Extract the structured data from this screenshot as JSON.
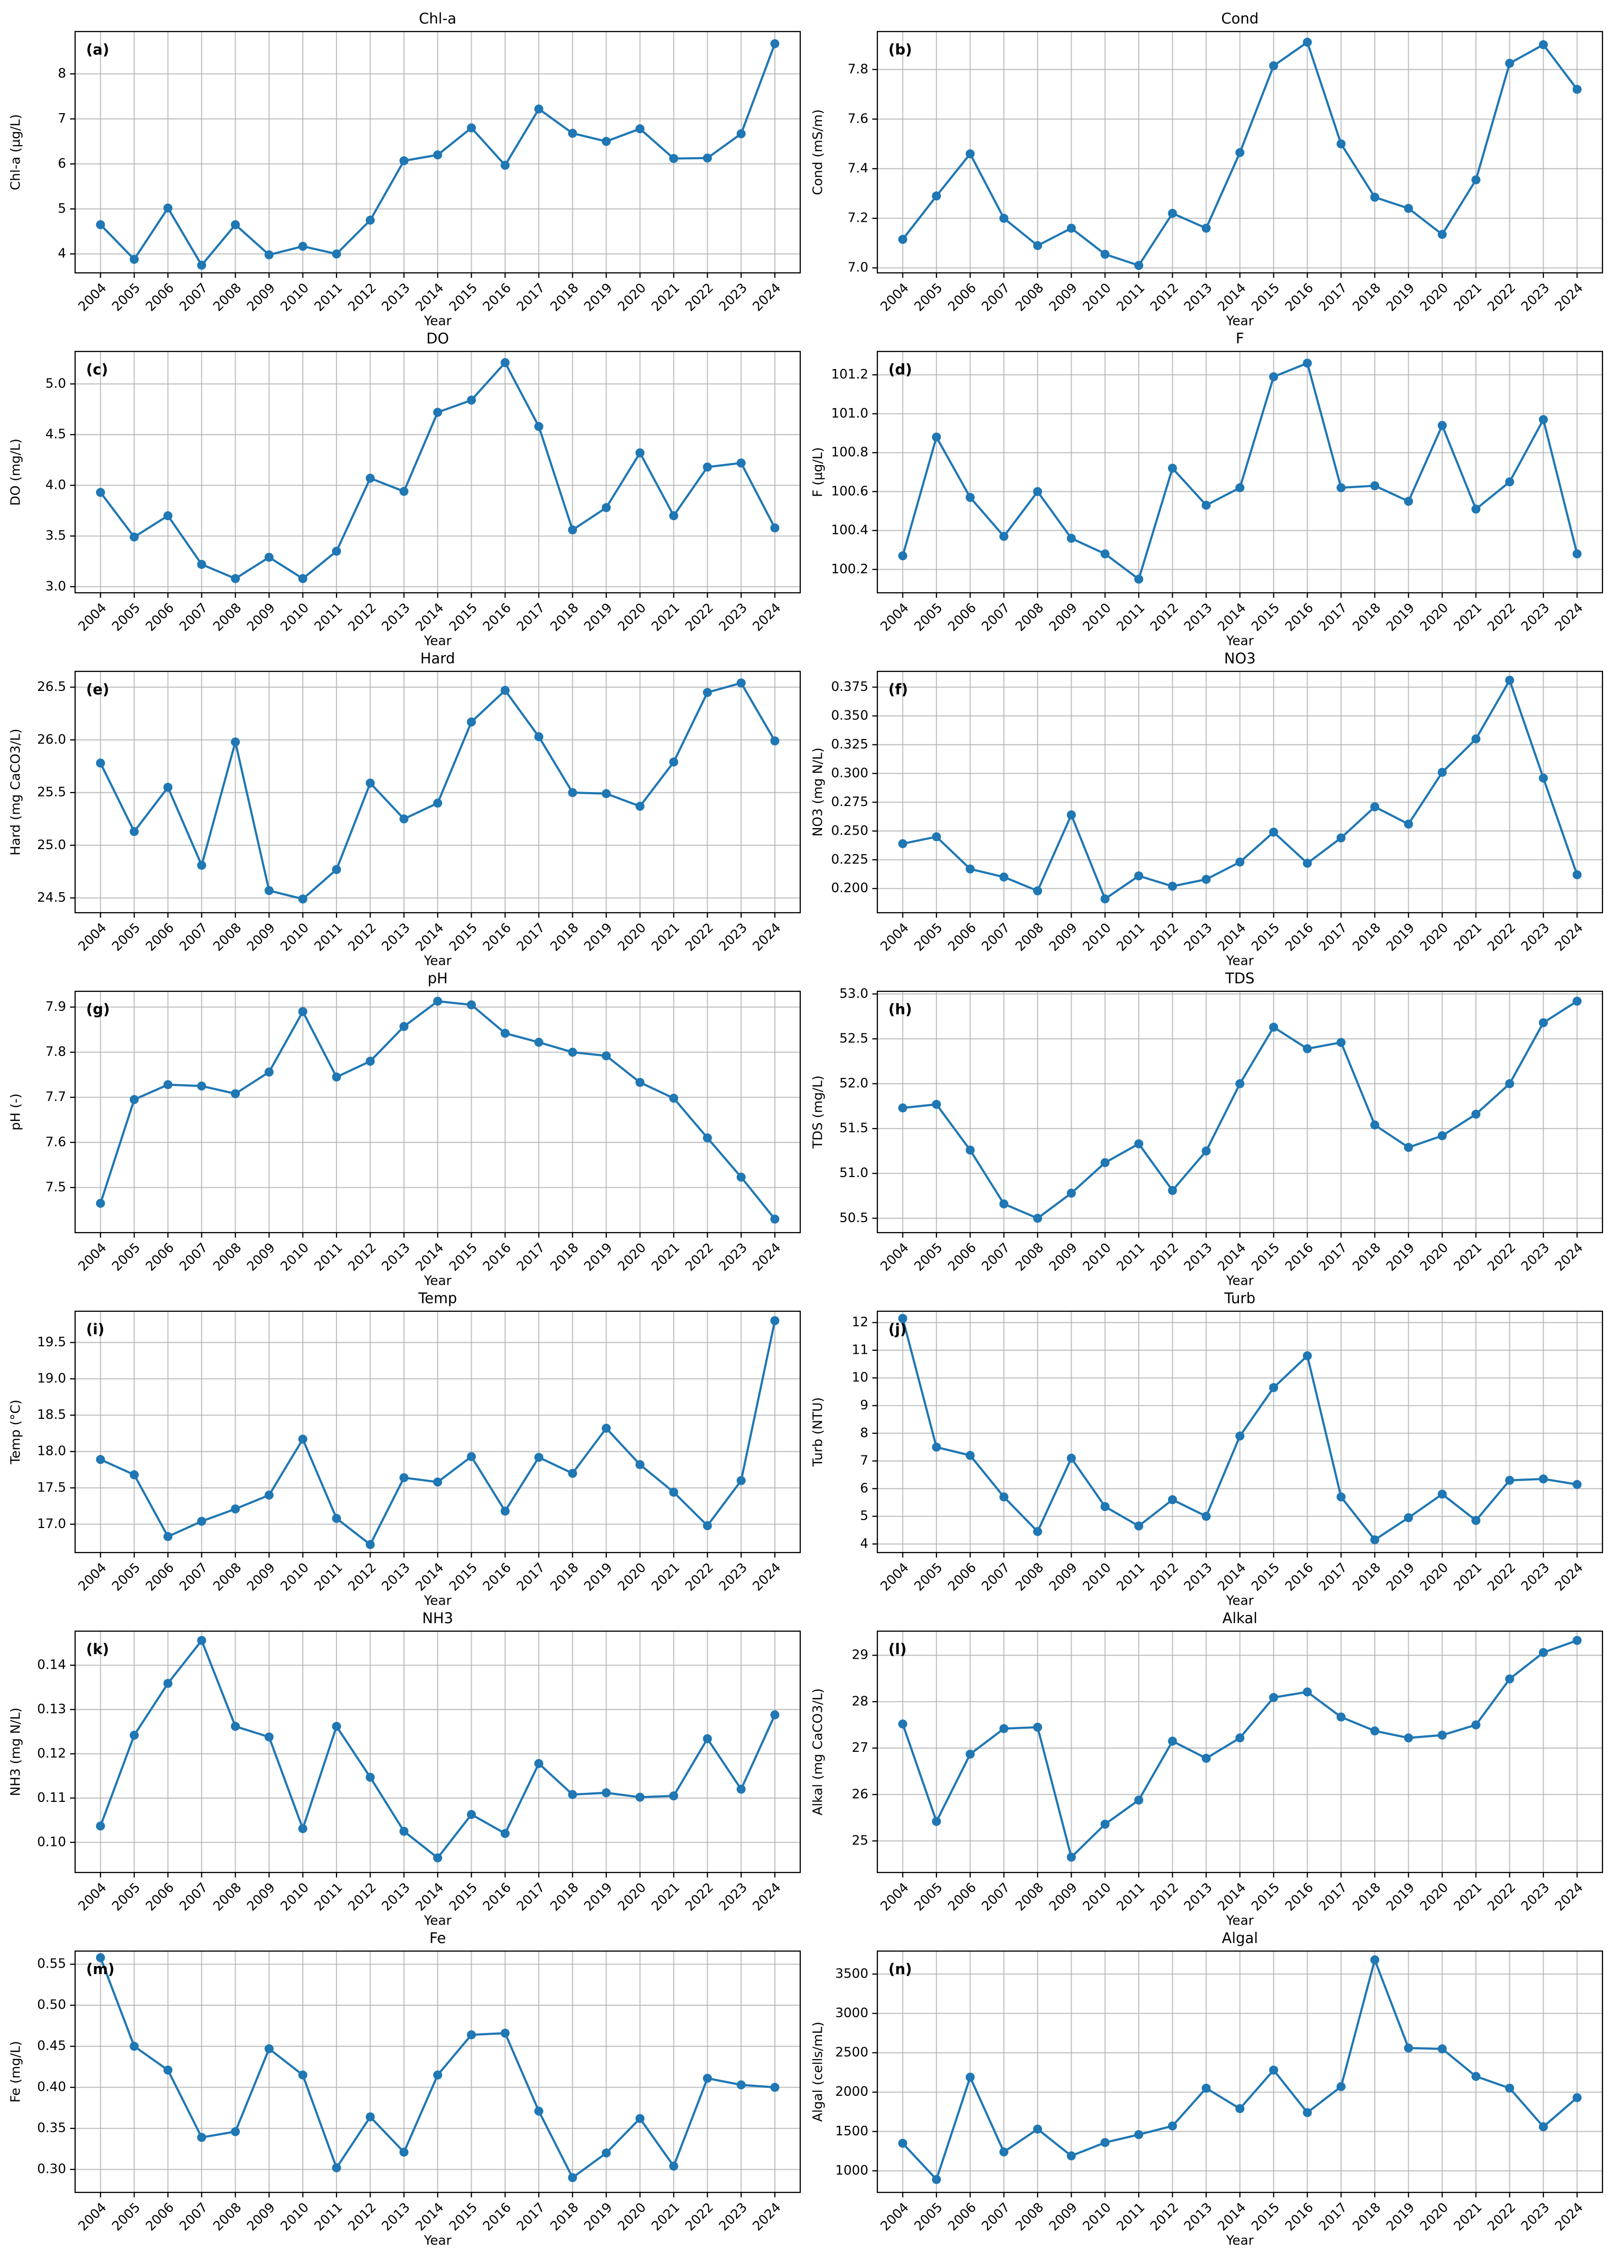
{
  "chart_data": [
    {
      "type": "line",
      "title": "Chl-a",
      "panel": "(a)",
      "xlabel": "Year",
      "ylabel": "Chl-a (µg/L)",
      "color": "#1f77b4",
      "grid": true,
      "categories": [
        "2004",
        "2005",
        "2006",
        "2007",
        "2008",
        "2009",
        "2010",
        "2011",
        "2012",
        "2013",
        "2014",
        "2015",
        "2016",
        "2017",
        "2018",
        "2019",
        "2020",
        "2021",
        "2022",
        "2023",
        "2024"
      ],
      "values": [
        4.65,
        3.88,
        5.02,
        3.75,
        4.65,
        3.98,
        4.17,
        4.0,
        4.75,
        6.07,
        6.2,
        6.8,
        5.97,
        7.22,
        6.68,
        6.5,
        6.78,
        6.12,
        6.13,
        6.67,
        8.67
      ],
      "ylim": [
        3.58,
        8.94
      ],
      "yticks": [
        4,
        5,
        6,
        7,
        8
      ]
    },
    {
      "type": "line",
      "title": "Cond",
      "panel": "(b)",
      "xlabel": "Year",
      "ylabel": "Cond (mS/m)",
      "color": "#1f77b4",
      "grid": true,
      "categories": [
        "2004",
        "2005",
        "2006",
        "2007",
        "2008",
        "2009",
        "2010",
        "2011",
        "2012",
        "2013",
        "2014",
        "2015",
        "2016",
        "2017",
        "2018",
        "2019",
        "2020",
        "2021",
        "2022",
        "2023",
        "2024"
      ],
      "values": [
        7.115,
        7.29,
        7.46,
        7.2,
        7.09,
        7.16,
        7.055,
        7.01,
        7.22,
        7.16,
        7.465,
        7.815,
        7.91,
        7.5,
        7.285,
        7.24,
        7.135,
        7.355,
        7.825,
        7.9,
        7.72
      ],
      "ylim": [
        6.98,
        7.953
      ],
      "yticks": [
        {
          "value": 7,
          "label": "7.0"
        },
        7.2,
        7.4,
        7.6,
        7.8
      ]
    },
    {
      "type": "line",
      "title": "DO",
      "panel": "(c)",
      "xlabel": "Year",
      "ylabel": "DO (mg/L)",
      "color": "#1f77b4",
      "grid": true,
      "categories": [
        "2004",
        "2005",
        "2006",
        "2007",
        "2008",
        "2009",
        "2010",
        "2011",
        "2012",
        "2013",
        "2014",
        "2015",
        "2016",
        "2017",
        "2018",
        "2019",
        "2020",
        "2021",
        "2022",
        "2023",
        "2024"
      ],
      "values": [
        3.93,
        3.49,
        3.7,
        3.22,
        3.08,
        3.29,
        3.08,
        3.35,
        4.07,
        3.94,
        4.72,
        4.84,
        5.21,
        4.58,
        3.56,
        3.78,
        4.32,
        3.7,
        4.18,
        4.22,
        3.58
      ],
      "ylim": [
        2.94,
        5.32
      ],
      "yticks": [
        {
          "value": 3,
          "label": "3.0"
        },
        3.5,
        {
          "value": 4,
          "label": "4.0"
        },
        4.5,
        {
          "value": 5,
          "label": "5.0"
        }
      ]
    },
    {
      "type": "line",
      "title": "F",
      "panel": "(d)",
      "xlabel": "Year",
      "ylabel": "F (µg/L)",
      "color": "#1f77b4",
      "grid": true,
      "categories": [
        "2004",
        "2005",
        "2006",
        "2007",
        "2008",
        "2009",
        "2010",
        "2011",
        "2012",
        "2013",
        "2014",
        "2015",
        "2016",
        "2017",
        "2018",
        "2019",
        "2020",
        "2021",
        "2022",
        "2023",
        "2024"
      ],
      "values": [
        100.27,
        100.88,
        100.57,
        100.37,
        100.6,
        100.36,
        100.28,
        100.15,
        100.72,
        100.53,
        100.62,
        101.19,
        101.26,
        100.62,
        100.63,
        100.55,
        100.94,
        100.51,
        100.65,
        100.97,
        100.28
      ],
      "ylim": [
        100.08,
        101.32
      ],
      "yticks": [
        100.2,
        100.4,
        100.6,
        100.8,
        {
          "value": 101,
          "label": "101.0"
        },
        101.2
      ]
    },
    {
      "type": "line",
      "title": "Hard",
      "panel": "(e)",
      "xlabel": "Year",
      "ylabel": "Hard (mg CaCO3/L)",
      "color": "#1f77b4",
      "grid": true,
      "categories": [
        "2004",
        "2005",
        "2006",
        "2007",
        "2008",
        "2009",
        "2010",
        "2011",
        "2012",
        "2013",
        "2014",
        "2015",
        "2016",
        "2017",
        "2018",
        "2019",
        "2020",
        "2021",
        "2022",
        "2023",
        "2024"
      ],
      "values": [
        25.78,
        25.13,
        25.55,
        24.81,
        25.98,
        24.57,
        24.49,
        24.77,
        25.59,
        25.25,
        25.4,
        26.17,
        26.47,
        26.03,
        25.5,
        25.49,
        25.37,
        25.79,
        26.45,
        26.54,
        25.99
      ],
      "ylim": [
        24.36,
        26.65
      ],
      "yticks": [
        24.5,
        {
          "value": 25,
          "label": "25.0"
        },
        25.5,
        {
          "value": 26,
          "label": "26.0"
        },
        26.5
      ]
    },
    {
      "type": "line",
      "title": "NO3",
      "panel": "(f)",
      "xlabel": "Year",
      "ylabel": "NO3 (mg N/L)",
      "color": "#1f77b4",
      "grid": true,
      "categories": [
        "2004",
        "2005",
        "2006",
        "2007",
        "2008",
        "2009",
        "2010",
        "2011",
        "2012",
        "2013",
        "2014",
        "2015",
        "2016",
        "2017",
        "2018",
        "2019",
        "2020",
        "2021",
        "2022",
        "2023",
        "2024"
      ],
      "values": [
        0.239,
        0.245,
        0.217,
        0.21,
        0.198,
        0.264,
        0.191,
        0.211,
        0.202,
        0.208,
        0.223,
        0.249,
        0.222,
        0.244,
        0.271,
        0.256,
        0.301,
        0.33,
        0.381,
        0.296,
        0.212
      ],
      "ylim": [
        0.179,
        0.3887
      ],
      "yticks": [
        {
          "value": 0.2,
          "label": "0.200"
        },
        0.225,
        {
          "value": 0.25,
          "label": "0.250"
        },
        0.275,
        {
          "value": 0.3,
          "label": "0.300"
        },
        0.325,
        {
          "value": 0.35,
          "label": "0.350"
        },
        0.375
      ]
    },
    {
      "type": "line",
      "title": "pH",
      "panel": "(g)",
      "xlabel": "Year",
      "ylabel": "pH (-)",
      "color": "#1f77b4",
      "grid": true,
      "categories": [
        "2004",
        "2005",
        "2006",
        "2007",
        "2008",
        "2009",
        "2010",
        "2011",
        "2012",
        "2013",
        "2014",
        "2015",
        "2016",
        "2017",
        "2018",
        "2019",
        "2020",
        "2021",
        "2022",
        "2023",
        "2024"
      ],
      "values": [
        7.465,
        7.695,
        7.728,
        7.725,
        7.708,
        7.756,
        7.89,
        7.745,
        7.78,
        7.857,
        7.913,
        7.905,
        7.842,
        7.822,
        7.8,
        7.792,
        7.733,
        7.698,
        7.61,
        7.523,
        7.43
      ],
      "ylim": [
        7.4,
        7.935
      ],
      "yticks": [
        7.5,
        7.6,
        7.7,
        7.8,
        7.9
      ]
    },
    {
      "type": "line",
      "title": "TDS",
      "panel": "(h)",
      "xlabel": "Year",
      "ylabel": "TDS (mg/L)",
      "color": "#1f77b4",
      "grid": true,
      "categories": [
        "2004",
        "2005",
        "2006",
        "2007",
        "2008",
        "2009",
        "2010",
        "2011",
        "2012",
        "2013",
        "2014",
        "2015",
        "2016",
        "2017",
        "2018",
        "2019",
        "2020",
        "2021",
        "2022",
        "2023",
        "2024"
      ],
      "values": [
        51.73,
        51.77,
        51.26,
        50.66,
        50.5,
        50.78,
        51.12,
        51.33,
        50.81,
        51.25,
        52.0,
        52.63,
        52.39,
        52.46,
        51.54,
        51.29,
        51.42,
        51.66,
        52.0,
        52.68,
        52.92
      ],
      "ylim": [
        50.34,
        53.03
      ],
      "yticks": [
        50.5,
        {
          "value": 51,
          "label": "51.0"
        },
        51.5,
        {
          "value": 52,
          "label": "52.0"
        },
        52.5,
        {
          "value": 53,
          "label": "53.0"
        }
      ]
    },
    {
      "type": "line",
      "title": "Temp",
      "panel": "(i)",
      "xlabel": "Year",
      "ylabel": "Temp (°C)",
      "color": "#1f77b4",
      "grid": true,
      "categories": [
        "2004",
        "2005",
        "2006",
        "2007",
        "2008",
        "2009",
        "2010",
        "2011",
        "2012",
        "2013",
        "2014",
        "2015",
        "2016",
        "2017",
        "2018",
        "2019",
        "2020",
        "2021",
        "2022",
        "2023",
        "2024"
      ],
      "values": [
        17.89,
        17.68,
        16.83,
        17.04,
        17.21,
        17.4,
        18.17,
        17.08,
        16.72,
        17.64,
        17.58,
        17.93,
        17.18,
        17.92,
        17.7,
        18.32,
        17.82,
        17.44,
        16.98,
        17.6,
        19.8
      ],
      "ylim": [
        16.61,
        19.93
      ],
      "yticks": [
        {
          "value": 17,
          "label": "17.0"
        },
        17.5,
        {
          "value": 18,
          "label": "18.0"
        },
        18.5,
        {
          "value": 19,
          "label": "19.0"
        },
        19.5
      ]
    },
    {
      "type": "line",
      "title": "Turb",
      "panel": "(j)",
      "xlabel": "Year",
      "ylabel": "Turb (NTU)",
      "color": "#1f77b4",
      "grid": true,
      "categories": [
        "2004",
        "2005",
        "2006",
        "2007",
        "2008",
        "2009",
        "2010",
        "2011",
        "2012",
        "2013",
        "2014",
        "2015",
        "2016",
        "2017",
        "2018",
        "2019",
        "2020",
        "2021",
        "2022",
        "2023",
        "2024"
      ],
      "values": [
        12.15,
        7.5,
        7.2,
        5.7,
        4.45,
        7.1,
        5.35,
        4.65,
        5.6,
        5.0,
        7.9,
        9.65,
        10.8,
        5.7,
        4.15,
        4.95,
        5.8,
        4.85,
        6.3,
        6.35,
        6.15
      ],
      "ylim": [
        3.69,
        12.41
      ],
      "yticks": [
        4,
        5,
        6,
        7,
        8,
        9,
        10,
        11,
        12
      ]
    },
    {
      "type": "line",
      "title": "NH3",
      "panel": "(k)",
      "xlabel": "Year",
      "ylabel": "NH3 (mg N/L)",
      "color": "#1f77b4",
      "grid": true,
      "categories": [
        "2004",
        "2005",
        "2006",
        "2007",
        "2008",
        "2009",
        "2010",
        "2011",
        "2012",
        "2013",
        "2014",
        "2015",
        "2016",
        "2017",
        "2018",
        "2019",
        "2020",
        "2021",
        "2022",
        "2023",
        "2024"
      ],
      "values": [
        0.1037,
        0.1242,
        0.1359,
        0.1456,
        0.1262,
        0.1238,
        0.1031,
        0.1262,
        0.1147,
        0.1025,
        0.0965,
        0.1063,
        0.102,
        0.1178,
        0.1108,
        0.1112,
        0.1102,
        0.1105,
        0.1234,
        0.112,
        0.1288
      ],
      "ylim": [
        0.0932,
        0.1477
      ],
      "yticks": [
        {
          "value": 0.1,
          "label": "0.10"
        },
        0.11,
        0.12,
        0.13,
        0.14
      ]
    },
    {
      "type": "line",
      "title": "Alkal",
      "panel": "(l)",
      "xlabel": "Year",
      "ylabel": "Alkal (mg CaCO3/L)",
      "color": "#1f77b4",
      "grid": true,
      "categories": [
        "2004",
        "2005",
        "2006",
        "2007",
        "2008",
        "2009",
        "2010",
        "2011",
        "2012",
        "2013",
        "2014",
        "2015",
        "2016",
        "2017",
        "2018",
        "2019",
        "2020",
        "2021",
        "2022",
        "2023",
        "2024"
      ],
      "values": [
        27.52,
        25.42,
        26.87,
        27.42,
        27.45,
        24.65,
        25.36,
        25.88,
        27.15,
        26.78,
        27.22,
        28.09,
        28.21,
        27.67,
        27.37,
        27.22,
        27.28,
        27.5,
        28.49,
        29.06,
        29.32
      ],
      "ylim": [
        24.32,
        29.52
      ],
      "yticks": [
        25,
        26,
        27,
        28,
        29
      ]
    },
    {
      "type": "line",
      "title": "Fe",
      "panel": "(m)",
      "xlabel": "Year",
      "ylabel": "Fe (mg/L)",
      "color": "#1f77b4",
      "grid": true,
      "categories": [
        "2004",
        "2005",
        "2006",
        "2007",
        "2008",
        "2009",
        "2010",
        "2011",
        "2012",
        "2013",
        "2014",
        "2015",
        "2016",
        "2017",
        "2018",
        "2019",
        "2020",
        "2021",
        "2022",
        "2023",
        "2024"
      ],
      "values": [
        0.558,
        0.45,
        0.421,
        0.339,
        0.346,
        0.447,
        0.415,
        0.302,
        0.364,
        0.321,
        0.415,
        0.464,
        0.466,
        0.371,
        0.29,
        0.32,
        0.362,
        0.304,
        0.411,
        0.403,
        0.4
      ],
      "ylim": [
        0.272,
        0.566
      ],
      "yticks": [
        {
          "value": 0.3,
          "label": "0.30"
        },
        0.35,
        {
          "value": 0.4,
          "label": "0.40"
        },
        0.45,
        {
          "value": 0.5,
          "label": "0.50"
        },
        0.55
      ]
    },
    {
      "type": "line",
      "title": "Algal",
      "panel": "(n)",
      "xlabel": "Year",
      "ylabel": "Algal (cells/mL)",
      "color": "#1f77b4",
      "grid": true,
      "categories": [
        "2004",
        "2005",
        "2006",
        "2007",
        "2008",
        "2009",
        "2010",
        "2011",
        "2012",
        "2013",
        "2014",
        "2015",
        "2016",
        "2017",
        "2018",
        "2019",
        "2020",
        "2021",
        "2022",
        "2023",
        "2024"
      ],
      "values": [
        1350,
        890,
        2190,
        1240,
        1530,
        1190,
        1360,
        1460,
        1570,
        2050,
        1790,
        2280,
        1740,
        2070,
        3680,
        2560,
        2550,
        2200,
        2050,
        1560,
        1930
      ],
      "ylim": [
        726,
        3792
      ],
      "yticks": [
        1000,
        1500,
        2000,
        2500,
        3000,
        3500
      ]
    }
  ]
}
